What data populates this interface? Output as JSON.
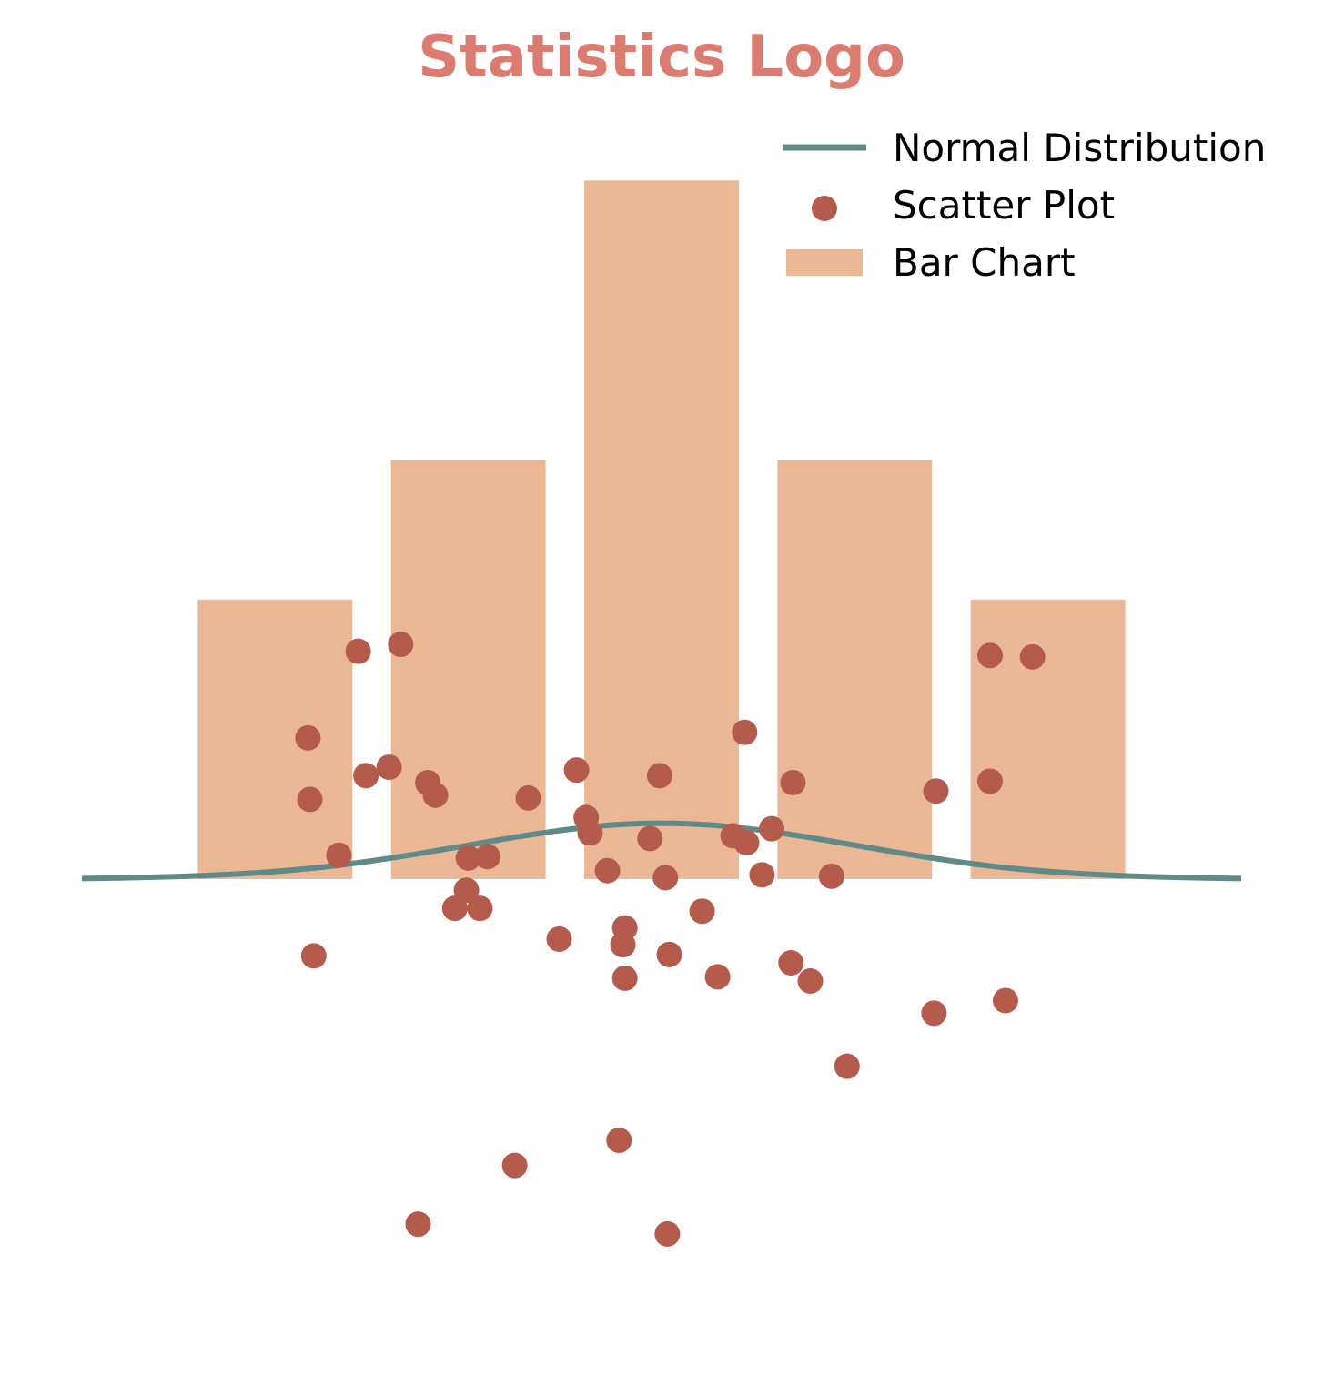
{
  "chart_data": {
    "type": "bar",
    "title": "Statistics Logo",
    "title_color": "#dc7c71",
    "axes_visible": false,
    "grid": false,
    "legend_position": "top-right",
    "xlim": [
      -3,
      3
    ],
    "ylim": [
      -3.14,
      5.51
    ],
    "legend": {
      "line_label": "Normal Distribution",
      "scatter_label": "Scatter Plot",
      "bar_label": "Bar Chart"
    },
    "colors": {
      "line": "#5e8b89",
      "scatter": "#b55b4b",
      "bar": "#eab895"
    },
    "bars": {
      "name": "Bar Chart",
      "x": [
        -2,
        -1,
        0,
        1,
        2
      ],
      "values": [
        2,
        3,
        5,
        3,
        2
      ],
      "width": 0.8
    },
    "line": {
      "name": "Normal Distribution",
      "x": [
        -3,
        -2.75,
        -2.5,
        -2.25,
        -2,
        -1.75,
        -1.5,
        -1.25,
        -1,
        -0.75,
        -0.5,
        -0.25,
        0,
        0.25,
        0.5,
        0.75,
        1,
        1.25,
        1.5,
        1.75,
        2,
        2.25,
        2.5,
        2.75,
        3
      ],
      "y": [
        0.004,
        0.009,
        0.018,
        0.032,
        0.054,
        0.086,
        0.13,
        0.183,
        0.242,
        0.301,
        0.352,
        0.387,
        0.399,
        0.387,
        0.352,
        0.301,
        0.242,
        0.183,
        0.13,
        0.086,
        0.054,
        0.032,
        0.018,
        0.009,
        0.004
      ]
    },
    "scatter": {
      "name": "Scatter Plot",
      "points": [
        [
          -1.57,
          1.63
        ],
        [
          -1.35,
          1.68
        ],
        [
          -1.83,
          1.01
        ],
        [
          -1.82,
          0.57
        ],
        [
          -1.53,
          0.74
        ],
        [
          -1.41,
          0.8
        ],
        [
          -1.21,
          0.69
        ],
        [
          -1.17,
          0.6
        ],
        [
          -0.69,
          0.58
        ],
        [
          -0.44,
          0.78
        ],
        [
          -0.39,
          0.44
        ],
        [
          -0.37,
          0.33
        ],
        [
          -1.67,
          0.17
        ],
        [
          -1.0,
          0.15
        ],
        [
          -0.9,
          0.16
        ],
        [
          -0.28,
          0.06
        ],
        [
          -0.01,
          0.74
        ],
        [
          -0.06,
          0.29
        ],
        [
          0.02,
          0.01
        ],
        [
          0.43,
          1.05
        ],
        [
          0.68,
          0.69
        ],
        [
          0.37,
          0.31
        ],
        [
          0.44,
          0.26
        ],
        [
          0.57,
          0.36
        ],
        [
          1.42,
          0.63
        ],
        [
          1.7,
          1.6
        ],
        [
          1.92,
          1.59
        ],
        [
          1.7,
          0.7
        ],
        [
          0.52,
          0.03
        ],
        [
          0.88,
          0.02
        ],
        [
          -0.94,
          -0.21
        ],
        [
          -1.07,
          -0.21
        ],
        [
          -1.8,
          -0.55
        ],
        [
          -1.01,
          -0.08
        ],
        [
          -0.53,
          -0.43
        ],
        [
          -0.19,
          -0.35
        ],
        [
          -0.2,
          -0.47
        ],
        [
          -0.19,
          -0.71
        ],
        [
          0.04,
          -0.54
        ],
        [
          0.29,
          -0.7
        ],
        [
          0.21,
          -0.23
        ],
        [
          0.67,
          -0.6
        ],
        [
          0.77,
          -0.73
        ],
        [
          1.41,
          -0.96
        ],
        [
          1.78,
          -0.87
        ],
        [
          0.96,
          -1.34
        ],
        [
          -0.76,
          -2.05
        ],
        [
          -0.22,
          -1.87
        ],
        [
          -1.26,
          -2.47
        ],
        [
          0.03,
          -2.54
        ]
      ]
    }
  }
}
